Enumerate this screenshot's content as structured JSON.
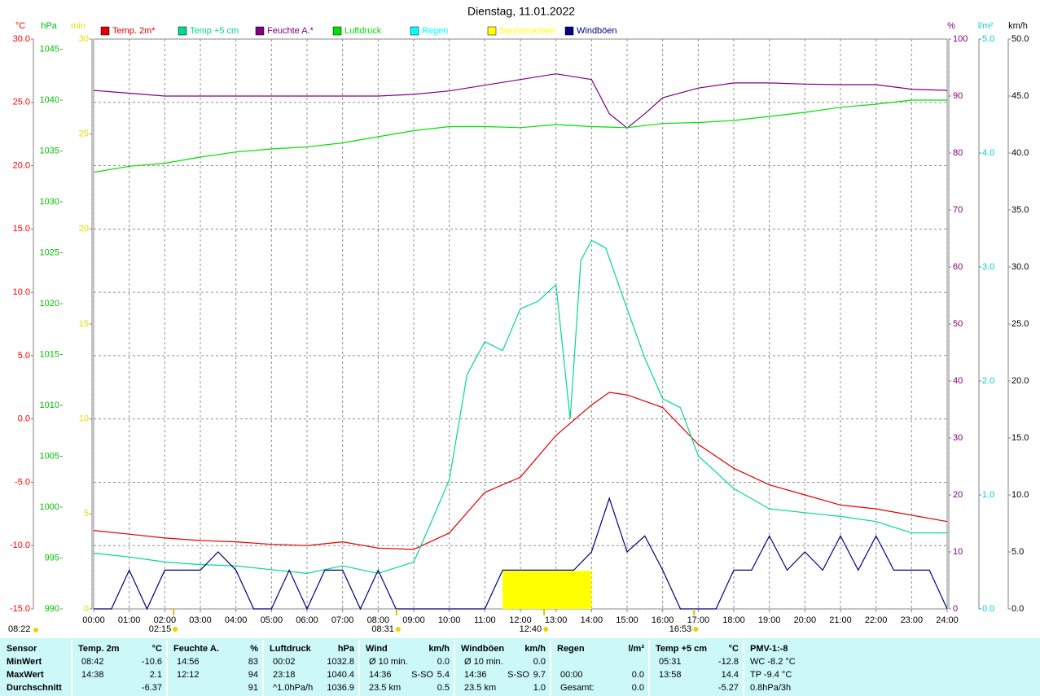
{
  "chart_data": {
    "type": "line",
    "title": "Dienstag, 11.01.2022",
    "xlim": [
      0,
      24
    ],
    "xticks": [
      {
        "value": 0,
        "label": "00:00"
      },
      {
        "value": 1,
        "label": "01:00"
      },
      {
        "value": 2,
        "label": "02:00"
      },
      {
        "value": 3,
        "label": "03:00"
      },
      {
        "value": 4,
        "label": "04:00"
      },
      {
        "value": 5,
        "label": "05:00"
      },
      {
        "value": 6,
        "label": "06:00"
      },
      {
        "value": 7,
        "label": "07:00"
      },
      {
        "value": 8,
        "label": "08:00"
      },
      {
        "value": 9,
        "label": "09:00"
      },
      {
        "value": 10,
        "label": "10:00"
      },
      {
        "value": 11,
        "label": "11:00"
      },
      {
        "value": 12,
        "label": "12:00"
      },
      {
        "value": 13,
        "label": "13:00"
      },
      {
        "value": 14,
        "label": "14:00"
      },
      {
        "value": 15,
        "label": "15:00"
      },
      {
        "value": 16,
        "label": "16:00"
      },
      {
        "value": 17,
        "label": "17:00"
      },
      {
        "value": 18,
        "label": "18:00"
      },
      {
        "value": 19,
        "label": "19:00"
      },
      {
        "value": 20,
        "label": "20:00"
      },
      {
        "value": 21,
        "label": "21:00"
      },
      {
        "value": 22,
        "label": "22:00"
      },
      {
        "value": 23,
        "label": "23:00"
      },
      {
        "value": 24,
        "label": "24:00"
      }
    ],
    "xgrid": true,
    "axes": [
      {
        "unit": "°C",
        "color": "#ff0000",
        "grid": true,
        "lim": [
          -15,
          30
        ],
        "ticks": [
          {
            "value": -15,
            "label": "-15.0"
          },
          {
            "value": -10,
            "label": "-10.0"
          },
          {
            "value": -5,
            "label": "-5.0"
          },
          {
            "value": 0,
            "label": "0.0"
          },
          {
            "value": 5,
            "label": "5.0"
          },
          {
            "value": 10,
            "label": "10.0"
          },
          {
            "value": 15,
            "label": "15.0"
          },
          {
            "value": 20,
            "label": "20.0"
          },
          {
            "value": 25,
            "label": "25.0"
          },
          {
            "value": 30,
            "label": "30.0"
          }
        ]
      },
      {
        "unit": "hPa",
        "color": "#00c000",
        "grid": false,
        "lim": [
          990,
          1046
        ],
        "ticks": [
          990,
          995,
          1000,
          1005,
          1010,
          1015,
          1020,
          1025,
          1030,
          1035,
          1040,
          1045
        ]
      },
      {
        "unit": "min",
        "color": "#e0e000",
        "grid": false,
        "lim": [
          0,
          30
        ],
        "ticks": [
          0,
          5,
          10,
          15,
          20,
          25,
          30
        ]
      },
      {
        "unit": "%",
        "color": "#800080",
        "grid": false,
        "lim": [
          0,
          100
        ],
        "ticks": [
          0,
          10,
          20,
          30,
          40,
          50,
          60,
          70,
          80,
          90,
          100
        ]
      },
      {
        "unit": "l/m²",
        "color": "#00d0d0",
        "grid": false,
        "lim": [
          0,
          5
        ],
        "ticks": [
          {
            "value": 0,
            "label": "0.0"
          },
          {
            "value": 1,
            "label": "1.0"
          },
          {
            "value": 2,
            "label": "2.0"
          },
          {
            "value": 3,
            "label": "3.0"
          },
          {
            "value": 4,
            "label": "4.0"
          },
          {
            "value": 5,
            "label": "5.0"
          }
        ]
      },
      {
        "unit": "km/h",
        "color": "#000000",
        "grid": false,
        "lim": [
          0,
          50
        ],
        "ticks": [
          {
            "value": 0,
            "label": "0.0"
          },
          {
            "value": 5,
            "label": "5.0"
          },
          {
            "value": 10,
            "label": "10.0"
          },
          {
            "value": 15,
            "label": "15.0"
          },
          {
            "value": 20,
            "label": "20.0"
          },
          {
            "value": 25,
            "label": "25.0"
          },
          {
            "value": 30,
            "label": "30.0"
          },
          {
            "value": 35,
            "label": "35.0"
          },
          {
            "value": 40,
            "label": "40.0"
          },
          {
            "value": 45,
            "label": "45.0"
          },
          {
            "value": 50,
            "label": "50.0"
          }
        ]
      }
    ],
    "series": [
      {
        "name": "Temp. 2m*",
        "color": "#e00000",
        "type": "line",
        "axis": 0,
        "x": [
          0,
          1,
          2,
          3,
          4,
          5,
          6,
          7,
          8,
          9,
          10,
          11,
          12,
          13,
          14,
          14.5,
          15,
          16,
          17,
          18,
          19,
          20,
          21,
          22,
          23,
          24
        ],
        "values": [
          -8.8,
          -9.1,
          -9.4,
          -9.6,
          -9.7,
          -9.9,
          -10.0,
          -9.7,
          -10.2,
          -10.3,
          -9.0,
          -5.8,
          -4.6,
          -1.3,
          1.1,
          2.1,
          1.9,
          0.9,
          -2.0,
          -3.9,
          -5.2,
          -6.0,
          -6.8,
          -7.1,
          -7.6,
          -8.1
        ]
      },
      {
        "name": "Temp +5 cm",
        "color": "#00d890",
        "type": "line",
        "axis": 0,
        "x": [
          0,
          1,
          2,
          3,
          4,
          5,
          6,
          7,
          8,
          9,
          9.5,
          10,
          10.5,
          11,
          11.5,
          12,
          12.5,
          13,
          13.4,
          13.7,
          14,
          14.4,
          15,
          15.5,
          16,
          16.5,
          17,
          18,
          19,
          20,
          21,
          22,
          23,
          24
        ],
        "values": [
          -10.6,
          -10.9,
          -11.3,
          -11.5,
          -11.6,
          -11.9,
          -12.2,
          -11.6,
          -12.2,
          -11.3,
          -8.1,
          -4.8,
          3.5,
          6.1,
          5.4,
          8.7,
          9.3,
          10.6,
          0.0,
          12.5,
          14.1,
          13.5,
          8.7,
          4.8,
          1.6,
          0.9,
          -2.9,
          -5.5,
          -7.1,
          -7.4,
          -7.7,
          -8.1,
          -9.0,
          -9.0
        ]
      },
      {
        "name": "Feuchte A.*",
        "color": "#800080",
        "type": "line",
        "axis": 3,
        "x": [
          0,
          1,
          2,
          3,
          4,
          5,
          6,
          7,
          8,
          9,
          10,
          11,
          12,
          13,
          14,
          14.5,
          15,
          15.5,
          16,
          17,
          18,
          19,
          20,
          21,
          22,
          23,
          24
        ],
        "values": [
          91,
          90.5,
          90,
          90,
          90,
          90,
          90,
          90,
          90,
          90.3,
          90.9,
          91.9,
          92.9,
          93.9,
          92.9,
          86.9,
          84.4,
          86.9,
          89.7,
          91.4,
          92.3,
          92.3,
          92.1,
          92,
          92,
          91.2,
          91
        ]
      },
      {
        "name": "Luftdruck",
        "color": "#00e000",
        "type": "line",
        "axis": 1,
        "x": [
          0,
          1,
          2,
          3,
          4,
          5,
          6,
          7,
          8,
          9,
          10,
          11,
          12,
          13,
          14,
          15,
          16,
          17,
          18,
          19,
          20,
          21,
          22,
          23,
          24
        ],
        "values": [
          1032.9,
          1033.5,
          1033.8,
          1034.4,
          1034.9,
          1035.2,
          1035.4,
          1035.8,
          1036.4,
          1037.0,
          1037.4,
          1037.4,
          1037.3,
          1037.6,
          1037.4,
          1037.3,
          1037.7,
          1037.8,
          1038.0,
          1038.4,
          1038.8,
          1039.3,
          1039.6,
          1040.0,
          1040.0
        ]
      },
      {
        "name": "Regen",
        "color": "#00ffff",
        "type": "line",
        "axis": 4,
        "x": [],
        "values": []
      },
      {
        "name": "Sonnenschein",
        "color": "#ffff00",
        "type": "bar",
        "axis": 2,
        "bins": [
          11.5,
          14
        ],
        "values": [
          2
        ]
      },
      {
        "name": "Windböen",
        "color": "#000080",
        "type": "line",
        "axis": 5,
        "x": [
          0,
          0.5,
          1,
          1.5,
          2,
          2.5,
          3,
          3.5,
          4,
          4.5,
          5,
          5.5,
          6,
          6.5,
          7,
          7.5,
          8,
          8.5,
          9,
          9.5,
          10,
          10.5,
          11,
          11.5,
          12,
          12.5,
          13,
          13.5,
          14,
          14.5,
          15,
          15.5,
          16,
          16.5,
          17,
          17.5,
          18,
          18.5,
          19,
          19.5,
          20,
          20.5,
          21,
          21.5,
          22,
          22.5,
          23,
          23.5,
          24
        ],
        "values": [
          0,
          0,
          3.4,
          0,
          3.4,
          3.4,
          3.4,
          5.0,
          3.4,
          0,
          0,
          3.4,
          0,
          3.4,
          3.4,
          0,
          3.4,
          0,
          0,
          0,
          0,
          0,
          0,
          3.4,
          3.4,
          3.4,
          3.4,
          3.4,
          5.0,
          9.7,
          5.0,
          6.4,
          3.4,
          0,
          0,
          0,
          3.4,
          3.4,
          6.4,
          3.4,
          5.0,
          3.4,
          6.4,
          3.4,
          6.4,
          3.4,
          3.4,
          3.4,
          0
        ]
      }
    ],
    "corner_event": "08:22",
    "events": [
      "02:15",
      "08:31",
      "12:40",
      "16:53"
    ]
  },
  "table": {
    "corner": "Sensor",
    "columns": [
      [
        "Temp. 2m",
        "°C"
      ],
      [
        "Feuchte A.",
        "%"
      ],
      [
        "Luftdruck",
        "hPa"
      ],
      [
        "Wind",
        "km/h"
      ],
      [
        "Windböen",
        "km/h"
      ],
      [
        "Regen",
        "l/m²"
      ],
      [
        "Temp +5 cm",
        "°C"
      ],
      [
        "PMV-1:-8"
      ]
    ],
    "rows": [
      {
        "label": "MinWert",
        "cells": [
          [
            "08:42",
            "-10.6"
          ],
          [
            "14:56",
            "83"
          ],
          [
            "00:02",
            "1032.8"
          ],
          [
            "Ø 10 min.",
            "0.0"
          ],
          [
            "Ø 10 min.",
            "0.0"
          ],
          [],
          [
            "05:31",
            "-12.8"
          ],
          [
            "WC -8.2 °C"
          ]
        ]
      },
      {
        "label": "MaxWert",
        "cells": [
          [
            "14:38",
            "2.1"
          ],
          [
            "12:12",
            "94"
          ],
          [
            "23:18",
            "1040.4"
          ],
          [
            "14:36",
            "S-SO",
            "5.4"
          ],
          [
            "14:36",
            "S-SO",
            "9.7"
          ],
          [
            "00:00",
            "0.0"
          ],
          [
            "13:58",
            "14.4"
          ],
          [
            "TP -9.4 °C"
          ]
        ]
      },
      {
        "label": "Durchschnitt",
        "cells": [
          [
            "-6.37"
          ],
          [
            "91"
          ],
          [
            "^1.0hPa/h",
            "1036.9"
          ],
          [
            "23.5 km",
            "0.5"
          ],
          [
            "23.5 km",
            "1.0"
          ],
          [
            "Gesamt:",
            "0.0"
          ],
          [
            "-5.27"
          ],
          [
            "0.8hPa/3h"
          ]
        ]
      }
    ]
  }
}
